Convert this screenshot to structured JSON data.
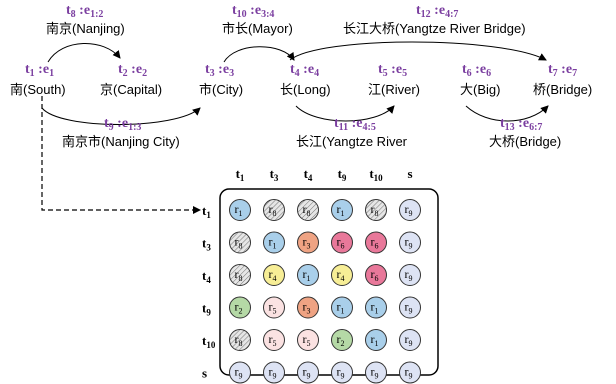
{
  "tokens": [
    {
      "id": "t1",
      "tag": "t",
      "idx": "1",
      "edge": "e",
      "eidx": "1",
      "word": "南(South)"
    },
    {
      "id": "t2",
      "tag": "t",
      "idx": "2",
      "edge": "e",
      "eidx": "2",
      "word": "京(Capital)"
    },
    {
      "id": "t3",
      "tag": "t",
      "idx": "3",
      "edge": "e",
      "eidx": "3",
      "word": "市(City)"
    },
    {
      "id": "t4",
      "tag": "t",
      "idx": "4",
      "edge": "e",
      "eidx": "4",
      "word": "长(Long)"
    },
    {
      "id": "t5",
      "tag": "t",
      "idx": "5",
      "edge": "e",
      "eidx": "5",
      "word": "江(River)"
    },
    {
      "id": "t6",
      "tag": "t",
      "idx": "6",
      "edge": "e",
      "eidx": "6",
      "word": "大(Big)"
    },
    {
      "id": "t7",
      "tag": "t",
      "idx": "7",
      "edge": "e",
      "eidx": "7",
      "word": "桥(Bridge)"
    },
    {
      "id": "t8",
      "tag": "t",
      "idx": "8",
      "edge": "e",
      "eidx": "1:2",
      "word": "南京(Nanjing)"
    },
    {
      "id": "t9",
      "tag": "t",
      "idx": "9",
      "edge": "e",
      "eidx": "1:3",
      "word": "南京市(Nanjing City)"
    },
    {
      "id": "t10",
      "tag": "t",
      "idx": "10",
      "edge": "e",
      "eidx": "3:4",
      "word": "市长(Mayor)"
    },
    {
      "id": "t11",
      "tag": "t",
      "idx": "11",
      "edge": "e",
      "eidx": "4:5",
      "word": "长江(Yangtze River"
    },
    {
      "id": "t12",
      "tag": "t",
      "idx": "12",
      "edge": "e",
      "eidx": "4:7",
      "word": "长江大桥(Yangtze River Bridge)"
    },
    {
      "id": "t13",
      "tag": "t",
      "idx": "13",
      "edge": "e",
      "eidx": "6:7",
      "word": "大桥(Bridge)"
    }
  ],
  "matrix": {
    "col_headers": [
      {
        "tag": "t",
        "idx": "1"
      },
      {
        "tag": "t",
        "idx": "3"
      },
      {
        "tag": "t",
        "idx": "4"
      },
      {
        "tag": "t",
        "idx": "9"
      },
      {
        "tag": "t",
        "idx": "10"
      },
      {
        "tag": "s",
        "idx": ""
      }
    ],
    "row_headers": [
      {
        "tag": "t",
        "idx": "1"
      },
      {
        "tag": "t",
        "idx": "3"
      },
      {
        "tag": "t",
        "idx": "4"
      },
      {
        "tag": "t",
        "idx": "9"
      },
      {
        "tag": "t",
        "idx": "10"
      },
      {
        "tag": "s",
        "idx": ""
      }
    ],
    "cell_letter": "r",
    "cells": [
      [
        "1",
        "8",
        "8",
        "1",
        "8",
        "9"
      ],
      [
        "8",
        "1",
        "3",
        "6",
        "6",
        "9"
      ],
      [
        "8",
        "4",
        "1",
        "4",
        "6",
        "9"
      ],
      [
        "2",
        "5",
        "3",
        "1",
        "1",
        "9"
      ],
      [
        "8",
        "5",
        "5",
        "2",
        "1",
        "9"
      ],
      [
        "9",
        "9",
        "9",
        "9",
        "9",
        "9"
      ]
    ],
    "relation_colors": {
      "1": "#A9CFEA",
      "2": "#B5D9A6",
      "3": "#EFA383",
      "4": "#F7EE96",
      "5": "#FBE2E2",
      "6": "#E9789A",
      "8": "#E6E6E6",
      "9": "#DDE3F4"
    },
    "hatched_relation": "8"
  },
  "colors": {
    "token_label": "#7B3FA0"
  }
}
